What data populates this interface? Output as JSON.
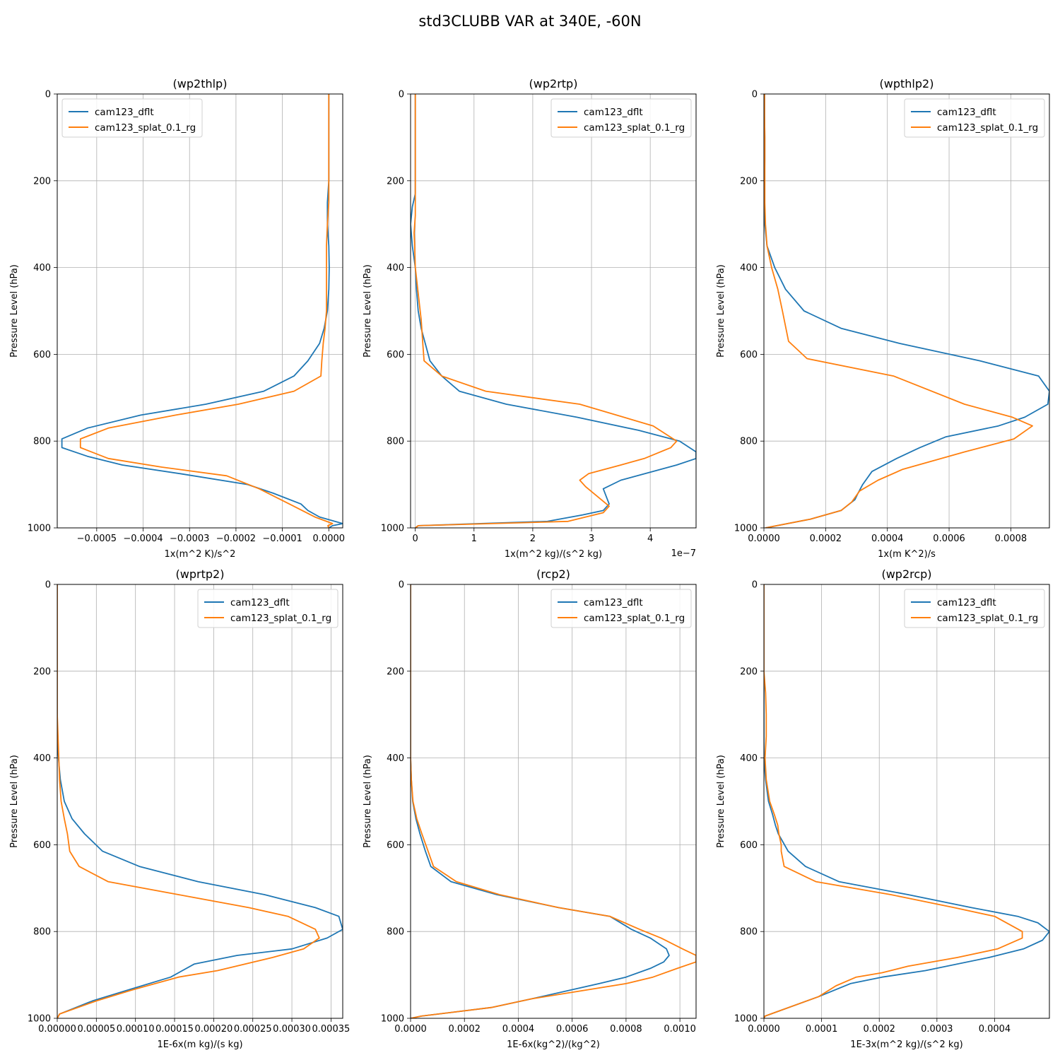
{
  "figure": {
    "title": "std3CLUBB VAR at 340E, -60N"
  },
  "colors": {
    "series1": "#1f77b4",
    "series2": "#ff7f0e",
    "grid": "#b0b0b0"
  },
  "legend_labels": [
    "cam123_dflt",
    "cam123_splat_0.1_rg"
  ],
  "chart_data": [
    {
      "type": "line",
      "title": "(wp2thlp)",
      "xlabel": "1x(m^2 K)/s^2",
      "ylabel": "Pressure Level (hPa)",
      "xlim": [
        -0.000585,
        3e-05
      ],
      "ylim": [
        1000,
        0
      ],
      "xticks": [
        -0.0005,
        -0.0004,
        -0.0003,
        -0.0002,
        -0.0001,
        0.0
      ],
      "xtick_labels": [
        "−0.0005",
        "−0.0004",
        "−0.0003",
        "−0.0002",
        "−0.0001",
        "0.0000"
      ],
      "yticks": [
        0,
        200,
        400,
        600,
        800,
        1000
      ],
      "ytick_labels": [
        "0",
        "200",
        "400",
        "600",
        "800",
        "1000"
      ],
      "offset_label": "",
      "legend": "upper left",
      "grid": true,
      "series": [
        {
          "name": "cam123_dflt",
          "x": [
            0,
            0,
            0,
            0,
            0,
            -3e-06,
            -3e-06,
            0,
            1e-06,
            0,
            -3e-06,
            -1e-05,
            -2e-05,
            -4.5e-05,
            -7.5e-05,
            -0.00014,
            -0.000265,
            -0.000405,
            -0.00052,
            -0.000575,
            -0.000575,
            -0.00052,
            -0.000445,
            -0.00032,
            -0.000175,
            -0.00012,
            -6e-05,
            -4.5e-05,
            -2e-05,
            3e-05,
            8e-06,
            0
          ],
          "y": [
            0,
            50,
            100,
            150,
            200,
            250,
            300,
            350,
            400,
            450,
            500,
            540,
            575,
            615,
            650,
            685,
            715,
            740,
            770,
            795,
            815,
            835,
            855,
            875,
            900,
            920,
            945,
            960,
            975,
            990,
            995,
            1000
          ]
        },
        {
          "name": "cam123_splat_0.1_rg",
          "x": [
            0,
            0,
            0,
            0,
            0,
            0,
            -3e-06,
            -5e-06,
            -5e-06,
            -5e-06,
            -5e-06,
            -8e-06,
            -1.2e-05,
            -1.5e-05,
            -1.7e-05,
            -7.5e-05,
            -0.000195,
            -0.00033,
            -0.000475,
            -0.000535,
            -0.000535,
            -0.000475,
            -0.00036,
            -0.00022,
            -0.00015,
            -8.5e-05,
            -3e-05,
            8e-06,
            -2e-06,
            0
          ],
          "y": [
            0,
            50,
            100,
            150,
            200,
            250,
            300,
            350,
            400,
            450,
            500,
            540,
            575,
            615,
            650,
            685,
            715,
            740,
            770,
            795,
            815,
            840,
            860,
            880,
            910,
            945,
            975,
            990,
            995,
            1000
          ]
        }
      ]
    },
    {
      "type": "line",
      "title": "(wp2rtp)",
      "xlabel": "1x(m^2 kg)/(s^2 kg)",
      "ylabel": "Pressure Level (hPa)",
      "xlim": [
        -0.08,
        4.78
      ],
      "ylim": [
        1000,
        0
      ],
      "xticks": [
        0,
        1,
        2,
        3,
        4
      ],
      "xtick_labels": [
        "0",
        "1",
        "2",
        "3",
        "4"
      ],
      "yticks": [
        0,
        200,
        400,
        600,
        800,
        1000
      ],
      "ytick_labels": [
        "0",
        "200",
        "400",
        "600",
        "800",
        "1000"
      ],
      "offset_label": "1e−7",
      "legend": "upper right",
      "grid": true,
      "series": [
        {
          "name": "cam123_dflt",
          "x": [
            0,
            0,
            0,
            0,
            0,
            0,
            -0.05,
            -0.08,
            -0.05,
            0,
            0.02,
            0.05,
            0.1,
            0.25,
            0.45,
            0.75,
            1.55,
            2.75,
            3.8,
            4.5,
            4.78,
            4.78,
            4.45,
            3.5,
            3.2,
            3.3,
            3.2,
            2.85,
            2.25,
            0.05,
            0
          ],
          "y": [
            0,
            50,
            100,
            150,
            200,
            230,
            260,
            300,
            350,
            400,
            450,
            500,
            540,
            615,
            650,
            685,
            715,
            745,
            775,
            800,
            825,
            840,
            855,
            890,
            910,
            945,
            960,
            970,
            985,
            995,
            1000
          ]
        },
        {
          "name": "cam123_splat_0.1_rg",
          "x": [
            0,
            0,
            0,
            0,
            0,
            0,
            0,
            -0.02,
            -0.01,
            0,
            0.05,
            0.1,
            0.13,
            0.15,
            0.45,
            1.2,
            2.8,
            4.05,
            4.45,
            4.35,
            3.9,
            3.5,
            2.95,
            2.8,
            2.9,
            3.3,
            3.2,
            2.6,
            0.05,
            0
          ],
          "y": [
            0,
            50,
            100,
            150,
            200,
            240,
            280,
            320,
            350,
            400,
            460,
            520,
            580,
            615,
            650,
            685,
            715,
            765,
            800,
            815,
            840,
            855,
            875,
            890,
            905,
            950,
            965,
            985,
            995,
            1000
          ]
        }
      ]
    },
    {
      "type": "line",
      "title": "(wpthlp2)",
      "xlabel": "1x(m K^2)/s",
      "ylabel": "Pressure Level (hPa)",
      "xlim": [
        0,
        0.000925
      ],
      "ylim": [
        1000,
        0
      ],
      "xticks": [
        0,
        0.0002,
        0.0004,
        0.0006,
        0.0008
      ],
      "xtick_labels": [
        "0.0000",
        "0.0002",
        "0.0004",
        "0.0006",
        "0.0008"
      ],
      "yticks": [
        0,
        200,
        400,
        600,
        800,
        1000
      ],
      "ytick_labels": [
        "0",
        "200",
        "400",
        "600",
        "800",
        "1000"
      ],
      "offset_label": "",
      "legend": "upper right",
      "grid": true,
      "series": [
        {
          "name": "cam123_dflt",
          "x": [
            2e-06,
            2e-06,
            3e-06,
            3e-06,
            2e-06,
            1e-06,
            3e-06,
            1e-05,
            3.5e-05,
            7e-05,
            0.00013,
            0.00025,
            0.00044,
            0.0007,
            0.00089,
            0.000925,
            0.00092,
            0.000845,
            0.00076,
            0.00059,
            0.000505,
            0.00043,
            0.00035,
            0.00032,
            0.000305,
            0.000295,
            0.00025,
            0.00015,
            5e-06
          ],
          "y": [
            0,
            50,
            100,
            150,
            200,
            250,
            300,
            350,
            400,
            450,
            500,
            540,
            575,
            615,
            650,
            685,
            715,
            745,
            765,
            790,
            815,
            840,
            870,
            900,
            920,
            935,
            960,
            980,
            1000
          ]
        },
        {
          "name": "cam123_splat_0.1_rg",
          "x": [
            2e-06,
            2e-06,
            3e-06,
            3e-06,
            3e-06,
            3e-06,
            5e-06,
            1e-05,
            2.5e-05,
            4.5e-05,
            6e-05,
            8e-05,
            0.00014,
            0.00042,
            0.00065,
            0.000805,
            0.00087,
            0.00081,
            0.00065,
            0.00045,
            0.00037,
            0.00031,
            0.000285,
            0.00025,
            0.00015,
            5e-06
          ],
          "y": [
            0,
            50,
            100,
            150,
            200,
            250,
            300,
            350,
            400,
            450,
            500,
            570,
            610,
            650,
            715,
            745,
            765,
            795,
            825,
            865,
            890,
            915,
            940,
            960,
            980,
            1000
          ]
        }
      ]
    },
    {
      "type": "line",
      "title": "(wprtp2)",
      "xlabel": "1E-6x(m kg)/(s kg)",
      "ylabel": "Pressure Level (hPa)",
      "xlim": [
        0,
        0.000365
      ],
      "ylim": [
        1000,
        0
      ],
      "xticks": [
        0,
        5e-05,
        0.0001,
        0.00015,
        0.0002,
        0.00025,
        0.0003,
        0.00035
      ],
      "xtick_labels": [
        "0.00000",
        "0.00005",
        "0.00010",
        "0.00015",
        "0.00020",
        "0.00025",
        "0.00030",
        "0.00035"
      ],
      "yticks": [
        0,
        200,
        400,
        600,
        800,
        1000
      ],
      "ytick_labels": [
        "0",
        "200",
        "400",
        "600",
        "800",
        "1000"
      ],
      "offset_label": "",
      "legend": "upper right",
      "grid": true,
      "series": [
        {
          "name": "cam123_dflt",
          "x": [
            0,
            0,
            0,
            0,
            0,
            0,
            0,
            0,
            1.5e-06,
            4e-06,
            9e-06,
            1.9e-05,
            3.5e-05,
            5.8e-05,
            0.000105,
            0.00018,
            0.000265,
            0.00033,
            0.00036,
            0.000365,
            0.000345,
            0.0003,
            0.00023,
            0.000175,
            0.000145,
            9e-05,
            4.5e-05,
            3e-06,
            0
          ],
          "y": [
            0,
            50,
            100,
            150,
            200,
            250,
            300,
            350,
            400,
            450,
            500,
            540,
            575,
            615,
            650,
            685,
            715,
            745,
            765,
            795,
            815,
            840,
            855,
            875,
            905,
            935,
            960,
            990,
            1000
          ]
        },
        {
          "name": "cam123_splat_0.1_rg",
          "x": [
            0,
            0,
            0,
            0,
            0,
            0,
            0,
            1e-06,
            2e-06,
            3e-06,
            5e-06,
            9e-06,
            1.3e-05,
            1.6e-05,
            2.8e-05,
            6.5e-05,
            0.000155,
            0.000245,
            0.000295,
            0.00033,
            0.000335,
            0.000315,
            0.000275,
            0.000205,
            0.000155,
            9.5e-05,
            5e-05,
            3e-06,
            0
          ],
          "y": [
            0,
            50,
            100,
            150,
            200,
            250,
            300,
            350,
            400,
            450,
            500,
            540,
            575,
            615,
            650,
            685,
            715,
            745,
            765,
            795,
            815,
            840,
            860,
            890,
            905,
            935,
            960,
            990,
            1000
          ]
        }
      ]
    },
    {
      "type": "line",
      "title": "(rcp2)",
      "xlabel": "1E-6x(kg^2)/(kg^2)",
      "ylabel": "Pressure Level (hPa)",
      "xlim": [
        0,
        0.00106
      ],
      "ylim": [
        1000,
        0
      ],
      "xticks": [
        0,
        0.0002,
        0.0004,
        0.0006,
        0.0008,
        0.001
      ],
      "xtick_labels": [
        "0.0000",
        "0.0002",
        "0.0004",
        "0.0006",
        "0.0008",
        "0.0010"
      ],
      "yticks": [
        0,
        200,
        400,
        600,
        800,
        1000
      ],
      "ytick_labels": [
        "0",
        "200",
        "400",
        "600",
        "800",
        "1000"
      ],
      "offset_label": "",
      "legend": "upper right",
      "grid": true,
      "series": [
        {
          "name": "cam123_dflt",
          "x": [
            0,
            0,
            0,
            0,
            0,
            0,
            0,
            0,
            0,
            3e-06,
            8e-06,
            2e-05,
            3.5e-05,
            5.5e-05,
            7.5e-05,
            0.00015,
            0.00032,
            0.00055,
            0.00074,
            0.00082,
            0.00089,
            0.00095,
            0.00096,
            0.00094,
            0.00089,
            0.0008,
            0.0007,
            0.00045,
            0.0003,
            4e-05,
            0
          ],
          "y": [
            0,
            50,
            100,
            150,
            200,
            250,
            300,
            350,
            400,
            450,
            500,
            540,
            575,
            615,
            650,
            685,
            715,
            745,
            765,
            795,
            815,
            840,
            855,
            870,
            885,
            905,
            920,
            955,
            975,
            995,
            1000
          ]
        },
        {
          "name": "cam123_splat_0.1_rg",
          "x": [
            0,
            0,
            0,
            0,
            0,
            0,
            0,
            0,
            0,
            3e-06,
            9e-06,
            2.3e-05,
            4.2e-05,
            6.5e-05,
            8.5e-05,
            0.00017,
            0.00033,
            0.00055,
            0.00074,
            0.00085,
            0.00093,
            0.00101,
            0.00106,
            0.00106,
            0.00099,
            0.0009,
            0.0008,
            0.00045,
            0.0003,
            4e-05,
            0
          ],
          "y": [
            0,
            50,
            100,
            150,
            200,
            250,
            300,
            350,
            400,
            450,
            500,
            540,
            575,
            615,
            650,
            685,
            715,
            745,
            765,
            795,
            815,
            840,
            855,
            870,
            885,
            905,
            920,
            955,
            975,
            995,
            1000
          ]
        }
      ]
    },
    {
      "type": "line",
      "title": "(wp2rcp)",
      "xlabel": "1E-3x(m^2 kg)/(s^2 kg)",
      "ylabel": "Pressure Level (hPa)",
      "xlim": [
        0,
        0.000495
      ],
      "ylim": [
        1000,
        0
      ],
      "xticks": [
        0,
        0.0001,
        0.0002,
        0.0003,
        0.0004
      ],
      "xtick_labels": [
        "0.0000",
        "0.0001",
        "0.0002",
        "0.0003",
        "0.0004"
      ],
      "yticks": [
        0,
        200,
        400,
        600,
        800,
        1000
      ],
      "ytick_labels": [
        "0",
        "200",
        "400",
        "600",
        "800",
        "1000"
      ],
      "offset_label": "",
      "legend": "upper right",
      "grid": true,
      "series": [
        {
          "name": "cam123_dflt",
          "x": [
            0,
            0,
            0,
            0,
            0,
            0,
            0,
            0,
            0,
            3e-06,
            8e-06,
            1.5e-05,
            2e-05,
            2.5e-05,
            4.2e-05,
            7.2e-05,
            0.00013,
            0.00025,
            0.00036,
            0.00044,
            0.000475,
            0.000495,
            0.000483,
            0.00045,
            0.00039,
            0.00028,
            0.000205,
            0.00015,
            9.5e-05,
            2e-06,
            0
          ],
          "y": [
            0,
            50,
            100,
            150,
            200,
            250,
            300,
            350,
            400,
            450,
            500,
            530,
            555,
            575,
            615,
            650,
            685,
            715,
            745,
            765,
            780,
            800,
            820,
            840,
            860,
            890,
            905,
            920,
            950,
            995,
            1000
          ]
        },
        {
          "name": "cam123_splat_0.1_rg",
          "x": [
            0,
            0,
            0,
            0,
            0,
            3e-06,
            4e-06,
            4e-06,
            2e-06,
            4e-06,
            1e-05,
            1.8e-05,
            2.4e-05,
            2.6e-05,
            3e-05,
            3e-05,
            3.5e-05,
            9e-05,
            0.00022,
            0.00033,
            0.0004,
            0.000448,
            0.000448,
            0.000405,
            0.000335,
            0.00025,
            0.000205,
            0.00016,
            0.000125,
            9.5e-05,
            2e-06,
            0
          ],
          "y": [
            0,
            50,
            100,
            150,
            200,
            250,
            300,
            350,
            400,
            450,
            500,
            530,
            555,
            575,
            600,
            615,
            650,
            685,
            715,
            745,
            765,
            800,
            815,
            840,
            860,
            880,
            895,
            905,
            925,
            950,
            995,
            1000
          ]
        }
      ]
    }
  ]
}
